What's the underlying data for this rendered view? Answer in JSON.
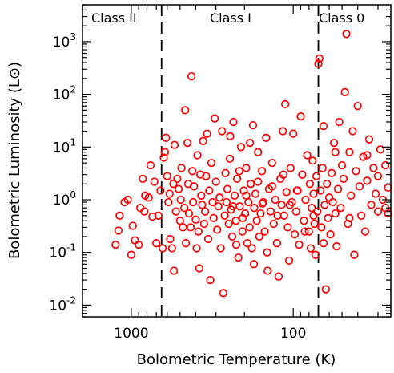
{
  "chart_data": {
    "type": "scatter",
    "title": "",
    "xlabel": "Bolometric Temperature (K)",
    "ylabel": "Bolometric Luminosity (L⊙)",
    "x_scale": "log",
    "x_reversed": true,
    "y_scale": "log",
    "xlim": [
      2000,
      25
    ],
    "ylim": [
      0.006,
      5000
    ],
    "x_ticks": [
      {
        "value": 1000,
        "label": "1000"
      },
      {
        "value": 100,
        "label": "100"
      }
    ],
    "y_ticks": [
      {
        "value": 0.01,
        "base": "10",
        "exp": "-2"
      },
      {
        "value": 0.1,
        "base": "10",
        "exp": "-1"
      },
      {
        "value": 1,
        "base": "10",
        "exp": "0"
      },
      {
        "value": 10,
        "base": "10",
        "exp": "1"
      },
      {
        "value": 100,
        "base": "10",
        "exp": "2"
      },
      {
        "value": 1000,
        "base": "10",
        "exp": "3"
      }
    ],
    "class_boundaries": [
      650,
      70
    ],
    "class_labels": [
      "Class II",
      "Class I",
      "Class 0"
    ],
    "marker_color": "#ff0000",
    "grid": false,
    "points": [
      [
        1250,
        0.14
      ],
      [
        1200,
        0.26
      ],
      [
        1180,
        0.5
      ],
      [
        1100,
        0.9
      ],
      [
        1050,
        1.0
      ],
      [
        980,
        0.32
      ],
      [
        950,
        0.17
      ],
      [
        900,
        0.14
      ],
      [
        1000,
        0.09
      ],
      [
        880,
        0.7
      ],
      [
        850,
        2.5
      ],
      [
        830,
        0.6
      ],
      [
        820,
        1.2
      ],
      [
        780,
        1.1
      ],
      [
        760,
        4.5
      ],
      [
        740,
        0.48
      ],
      [
        720,
        2.2
      ],
      [
        700,
        0.15
      ],
      [
        680,
        0.5
      ],
      [
        660,
        1.5
      ],
      [
        640,
        0.12
      ],
      [
        630,
        6.3
      ],
      [
        620,
        8.0
      ],
      [
        610,
        15
      ],
      [
        600,
        2.8
      ],
      [
        590,
        0.9
      ],
      [
        580,
        1.3
      ],
      [
        575,
        0.18
      ],
      [
        560,
        0.12
      ],
      [
        550,
        2.0
      ],
      [
        545,
        0.045
      ],
      [
        540,
        11
      ],
      [
        530,
        0.6
      ],
      [
        520,
        2.5
      ],
      [
        510,
        1.6
      ],
      [
        500,
        0.4
      ],
      [
        495,
        1.0
      ],
      [
        490,
        4.0
      ],
      [
        480,
        0.3
      ],
      [
        470,
        0.7
      ],
      [
        465,
        50
      ],
      [
        460,
        0.15
      ],
      [
        450,
        12
      ],
      [
        445,
        2.0
      ],
      [
        440,
        0.55
      ],
      [
        430,
        0.3
      ],
      [
        425,
        220
      ],
      [
        420,
        3.5
      ],
      [
        415,
        0.9
      ],
      [
        410,
        1.8
      ],
      [
        400,
        0.42
      ],
      [
        395,
        0.12
      ],
      [
        390,
        7.0
      ],
      [
        385,
        0.25
      ],
      [
        380,
        0.05
      ],
      [
        375,
        3.0
      ],
      [
        370,
        1.2
      ],
      [
        365,
        0.8
      ],
      [
        360,
        13
      ],
      [
        355,
        0.35
      ],
      [
        350,
        0.6
      ],
      [
        345,
        2.8
      ],
      [
        340,
        18
      ],
      [
        335,
        0.18
      ],
      [
        330,
        1.5
      ],
      [
        325,
        0.03
      ],
      [
        320,
        5.0
      ],
      [
        315,
        0.9
      ],
      [
        310,
        0.45
      ],
      [
        305,
        35
      ],
      [
        300,
        2.2
      ],
      [
        295,
        0.27
      ],
      [
        290,
        0.75
      ],
      [
        285,
        1.1
      ],
      [
        280,
        0.12
      ],
      [
        275,
        20
      ],
      [
        270,
        0.017
      ],
      [
        265,
        0.5
      ],
      [
        262,
        3.2
      ],
      [
        258,
        0.9
      ],
      [
        255,
        1.6
      ],
      [
        250,
        0.35
      ],
      [
        246,
        6.0
      ],
      [
        242,
        0.65
      ],
      [
        238,
        0.2
      ],
      [
        234,
        30
      ],
      [
        230,
        1.2
      ],
      [
        226,
        0.4
      ],
      [
        222,
        2.5
      ],
      [
        218,
        0.08
      ],
      [
        214,
        0.75
      ],
      [
        210,
        10
      ],
      [
        206,
        0.25
      ],
      [
        202,
        1.5
      ],
      [
        198,
        0.55
      ],
      [
        195,
        4.0
      ],
      [
        192,
        0.15
      ],
      [
        189,
        0.9
      ],
      [
        186,
        0.3
      ],
      [
        183,
        2.0
      ],
      [
        180,
        0.12
      ],
      [
        177,
        26
      ],
      [
        174,
        0.7
      ],
      [
        171,
        1.3
      ],
      [
        168,
        0.4
      ],
      [
        165,
        8.0
      ],
      [
        162,
        0.2
      ],
      [
        159,
        0.55
      ],
      [
        156,
        3.5
      ],
      [
        153,
        0.9
      ],
      [
        150,
        0.25
      ],
      [
        147,
        15
      ],
      [
        144,
        0.045
      ],
      [
        141,
        1.6
      ],
      [
        138,
        0.6
      ],
      [
        135,
        5.0
      ],
      [
        132,
        0.35
      ],
      [
        129,
        1.0
      ],
      [
        126,
        0.15
      ],
      [
        123,
        0.035
      ],
      [
        120,
        2.5
      ],
      [
        118,
        0.8
      ],
      [
        116,
        20
      ],
      [
        114,
        0.5
      ],
      [
        112,
        65
      ],
      [
        110,
        1.4
      ],
      [
        108,
        0.3
      ],
      [
        106,
        0.07
      ],
      [
        104,
        4.0
      ],
      [
        102,
        0.9
      ],
      [
        100,
        18
      ],
      [
        98,
        0.22
      ],
      [
        96,
        0.6
      ],
      [
        94,
        1.5
      ],
      [
        92,
        0.14
      ],
      [
        90,
        38
      ],
      [
        88,
        3.0
      ],
      [
        86,
        0.4
      ],
      [
        84,
        1.0
      ],
      [
        82,
        7.0
      ],
      [
        80,
        0.25
      ],
      [
        79,
        2.0
      ],
      [
        78,
        0.12
      ],
      [
        77,
        0.7
      ],
      [
        76,
        5.5
      ],
      [
        75,
        1.3
      ],
      [
        74,
        0.35
      ],
      [
        73,
        0.09
      ],
      [
        72,
        2.8
      ],
      [
        71,
        0.6
      ],
      [
        70,
        380
      ],
      [
        69,
        480
      ],
      [
        68,
        1.5
      ],
      [
        67,
        0.3
      ],
      [
        66,
        4.0
      ],
      [
        65,
        0.15
      ],
      [
        64,
        0.8
      ],
      [
        63,
        0.02
      ],
      [
        62,
        2.0
      ],
      [
        61,
        0.45
      ],
      [
        60,
        1.1
      ],
      [
        59,
        0.22
      ],
      [
        58,
        3.2
      ],
      [
        57,
        0.9
      ],
      [
        56,
        12
      ],
      [
        55,
        0.55
      ],
      [
        54,
        0.13
      ],
      [
        53,
        1.6
      ],
      [
        52,
        30
      ],
      [
        51,
        0.7
      ],
      [
        50,
        4.5
      ],
      [
        49,
        2.5
      ],
      [
        48,
        110
      ],
      [
        47,
        1400
      ],
      [
        46,
        0.35
      ],
      [
        45,
        8.0
      ],
      [
        44,
        1.2
      ],
      [
        43,
        20
      ],
      [
        42,
        0.09
      ],
      [
        41,
        3.5
      ],
      [
        40,
        60
      ],
      [
        39,
        1.8
      ],
      [
        38,
        0.5
      ],
      [
        37,
        6.5
      ],
      [
        36,
        0.25
      ],
      [
        35,
        2.3
      ],
      [
        34,
        14
      ],
      [
        33,
        0.8
      ],
      [
        32,
        4.0
      ],
      [
        31,
        1.3
      ],
      [
        30,
        0.6
      ],
      [
        30,
        2.8
      ],
      [
        29,
        9.0
      ],
      [
        28,
        1.0
      ],
      [
        27,
        0.7
      ],
      [
        27,
        4.5
      ],
      [
        26,
        0.55
      ],
      [
        26,
        1.7
      ],
      [
        35,
        7.0
      ],
      [
        45,
        0.45
      ],
      [
        55,
        8.0
      ],
      [
        65,
        25
      ],
      [
        75,
        0.5
      ],
      [
        85,
        0.25
      ],
      [
        95,
        1.5
      ],
      [
        105,
        0.8
      ],
      [
        115,
        3.0
      ],
      [
        125,
        0.5
      ],
      [
        135,
        1.8
      ],
      [
        145,
        0.1
      ],
      [
        155,
        0.85
      ],
      [
        165,
        2.2
      ],
      [
        175,
        0.06
      ],
      [
        185,
        12
      ],
      [
        195,
        1.2
      ],
      [
        205,
        0.45
      ],
      [
        215,
        3.5
      ],
      [
        225,
        0.14
      ],
      [
        235,
        0.75
      ],
      [
        245,
        16
      ]
    ]
  }
}
